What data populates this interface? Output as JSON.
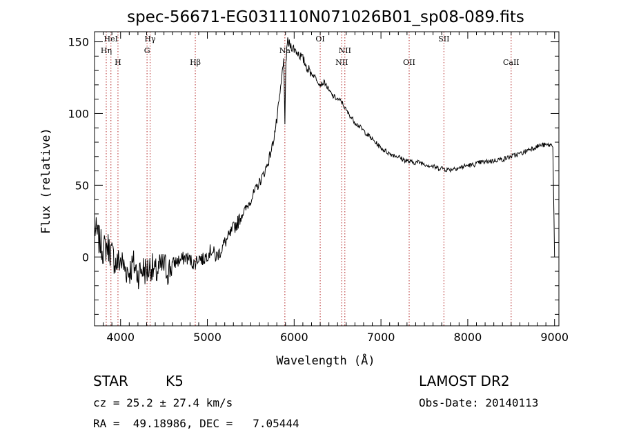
{
  "info": {
    "object_class": "STAR",
    "subclass": "K5",
    "survey": "LAMOST DR2",
    "redshift": "cz = 25.2 ± 27.4 km/s",
    "obs_date": "Obs-Date: 20140113",
    "coords": "RA =  49.18986, DEC =   7.05444"
  },
  "chart_data": {
    "type": "line",
    "title": "spec-56671-EG031110N071026B01_sp08-089.fits",
    "xlabel": "Wavelength (Å)",
    "ylabel": "Flux (relative)",
    "xlim": [
      3700,
      9050
    ],
    "ylim": [
      -48,
      157
    ],
    "xticks": [
      4000,
      5000,
      6000,
      7000,
      8000,
      9000
    ],
    "yticks": [
      0,
      50,
      100,
      150
    ],
    "line_color": "#000000",
    "marker_color": "#b22222",
    "spectral_lines": [
      {
        "label": "Hη",
        "x": 3835,
        "row": 2
      },
      {
        "label": "HeI",
        "x": 3889,
        "row": 1
      },
      {
        "label": "H",
        "x": 3970,
        "row": 3
      },
      {
        "label": "Hγ",
        "x": 4340,
        "row": 1
      },
      {
        "label": "G",
        "x": 4305,
        "row": 2
      },
      {
        "label": "Hβ",
        "x": 4861,
        "row": 3
      },
      {
        "label": "Na",
        "x": 5893,
        "row": 2
      },
      {
        "label": "OI",
        "x": 6300,
        "row": 1
      },
      {
        "label": "NII",
        "x": 6548,
        "row": 3
      },
      {
        "label": "NII",
        "x": 6584,
        "row": 2
      },
      {
        "label": "OII",
        "x": 7325,
        "row": 3
      },
      {
        "label": "SII",
        "x": 7725,
        "row": 1
      },
      {
        "label": "CaII",
        "x": 8500,
        "row": 3
      }
    ],
    "series": [
      {
        "x": [
          3700,
          3750,
          3800,
          3850,
          3900,
          3950,
          4000,
          4050,
          4100,
          4150,
          4200,
          4250,
          4300,
          4350,
          4400,
          4450,
          4500,
          4550,
          4600,
          4650,
          4700,
          4750,
          4800,
          4850,
          4900,
          4950,
          5000,
          5050,
          5100,
          5150,
          5200,
          5250,
          5300,
          5350,
          5400,
          5450,
          5500,
          5550,
          5600,
          5650,
          5700,
          5750,
          5800,
          5850,
          5880,
          5893,
          5905,
          5920,
          5950,
          6000,
          6050,
          6100,
          6150,
          6200,
          6250,
          6300,
          6350,
          6400,
          6450,
          6500,
          6550,
          6600,
          6650,
          6700,
          6750,
          6800,
          6850,
          6900,
          6950,
          7000,
          7050,
          7100,
          7150,
          7200,
          7250,
          7300,
          7350,
          7400,
          7450,
          7500,
          7550,
          7600,
          7650,
          7700,
          7750,
          7800,
          7850,
          7900,
          7950,
          8000,
          8050,
          8100,
          8150,
          8200,
          8250,
          8300,
          8350,
          8400,
          8450,
          8500,
          8550,
          8600,
          8650,
          8700,
          8750,
          8800,
          8850,
          8900,
          8950,
          8980,
          9000
        ],
        "y": [
          20,
          12,
          5,
          8,
          2,
          -5,
          -2,
          -8,
          -10,
          -5,
          -12,
          -8,
          -10,
          -6,
          -12,
          -8,
          -6,
          -10,
          -5,
          -3,
          -2,
          0,
          -2,
          -5,
          0,
          -2,
          2,
          5,
          0,
          4,
          10,
          14,
          20,
          24,
          30,
          34,
          40,
          46,
          52,
          58,
          66,
          78,
          95,
          120,
          140,
          90,
          135,
          150,
          148,
          145,
          142,
          138,
          132,
          128,
          125,
          120,
          122,
          116,
          112,
          110,
          108,
          102,
          98,
          94,
          91,
          88,
          85,
          82,
          79,
          76,
          74,
          72,
          71,
          70,
          68,
          67,
          66,
          66,
          66,
          65,
          64,
          63,
          62,
          62,
          61,
          61,
          62,
          62,
          63,
          64,
          64,
          65,
          66,
          66,
          67,
          67,
          68,
          68,
          69,
          70,
          71,
          72,
          73,
          75,
          76,
          77,
          78,
          78,
          78,
          78,
          0
        ]
      }
    ]
  }
}
